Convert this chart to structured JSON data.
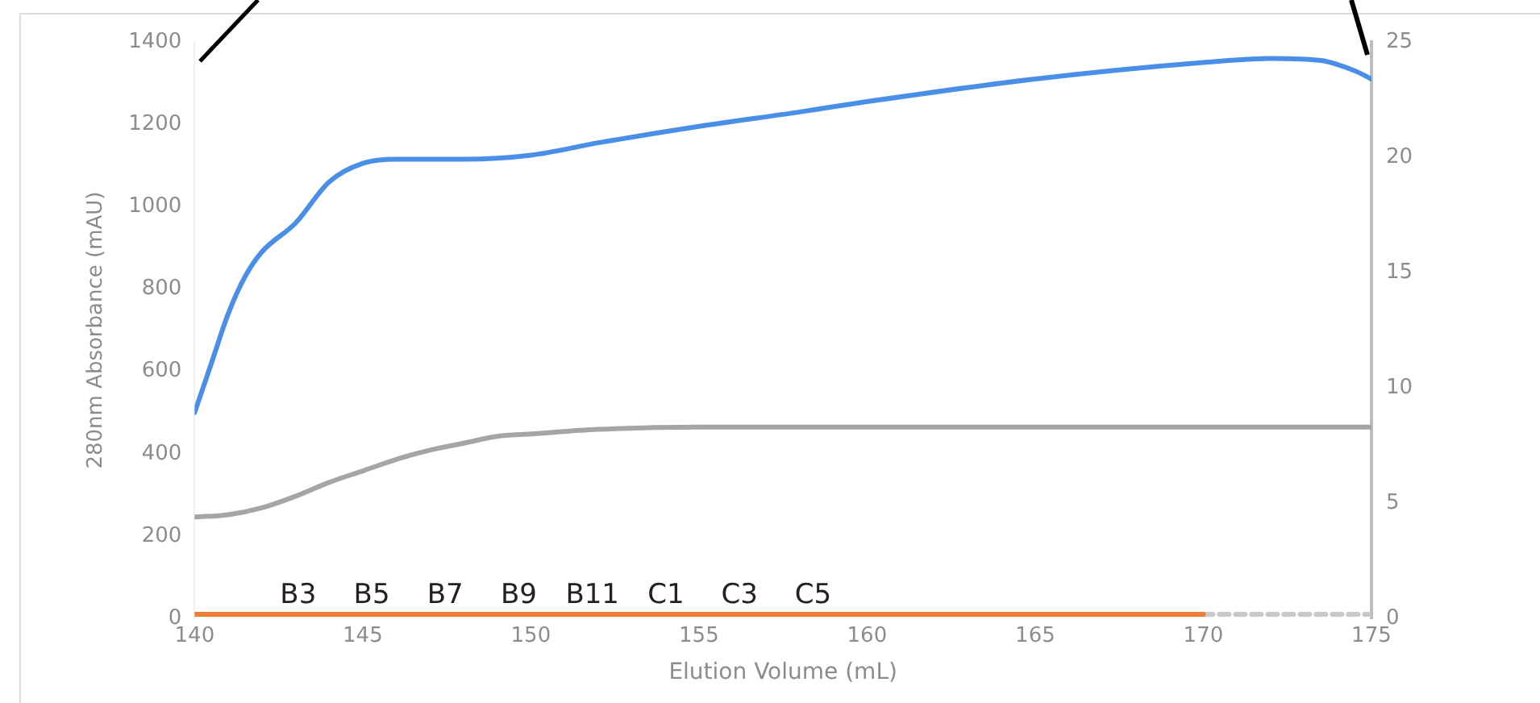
{
  "chart_data": {
    "type": "line",
    "xlabel": "Elution Volume (mL)",
    "ylabel": "280nm Absorbance (mAU)",
    "xlim": [
      140,
      175
    ],
    "xticks": [
      140,
      145,
      150,
      155,
      160,
      165,
      170,
      175
    ],
    "ylim": [
      0,
      1400
    ],
    "yticks": [
      0,
      200,
      400,
      600,
      800,
      1000,
      1200,
      1400
    ],
    "y2lim": [
      0,
      25
    ],
    "y2ticks": [
      0,
      5,
      10,
      15,
      20,
      25
    ],
    "grid": false,
    "marker": "none",
    "line_style": "solid",
    "series": [
      {
        "color": "#4a8fe7",
        "x": [
          140,
          140.5,
          141,
          141.5,
          142,
          143,
          144,
          145,
          146,
          148,
          150,
          152,
          155,
          158,
          160,
          165,
          170,
          172,
          173.5,
          174.5,
          175
        ],
        "values": [
          500,
          620,
          740,
          830,
          890,
          960,
          1060,
          1105,
          1115,
          1115,
          1125,
          1155,
          1195,
          1230,
          1255,
          1310,
          1350,
          1360,
          1355,
          1330,
          1310
        ]
      },
      {
        "color": "#a5a5a5",
        "axis": "y2",
        "x": [
          140,
          141,
          142,
          143,
          144,
          145,
          146,
          147,
          148,
          149,
          150,
          152,
          155,
          160,
          175
        ],
        "values": [
          4.4,
          4.5,
          4.8,
          5.3,
          5.9,
          6.4,
          6.9,
          7.3,
          7.6,
          7.9,
          8.0,
          8.2,
          8.3,
          8.3,
          8.3
        ]
      },
      {
        "color": "#ed7d31",
        "x": [
          140,
          150,
          160,
          170
        ],
        "values": [
          10,
          10,
          10,
          10
        ]
      },
      {
        "color": "#c8c8c8",
        "line_style": "dashed",
        "x": [
          170,
          175
        ],
        "values": [
          10,
          10
        ]
      }
    ],
    "annotations": [
      "B3",
      "B5",
      "B7",
      "B9",
      "B11",
      "C1",
      "C3",
      "C5"
    ]
  }
}
